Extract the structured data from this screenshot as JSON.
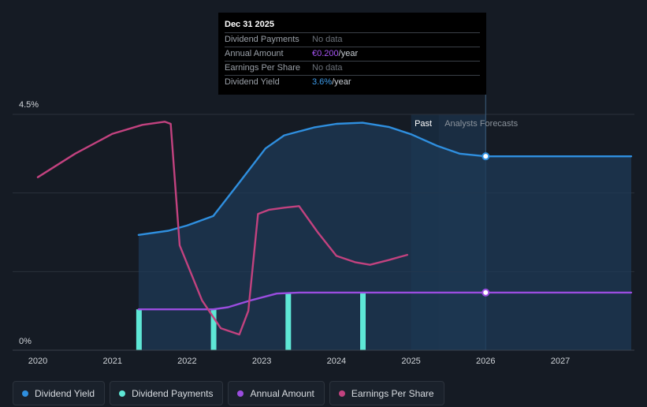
{
  "tooltip": {
    "date": "Dec 31 2025",
    "rows": [
      {
        "label": "Dividend Payments",
        "value": "No data",
        "unit": ""
      },
      {
        "label": "Annual Amount",
        "value": "€0.200",
        "unit": "/year"
      },
      {
        "label": "Earnings Per Share",
        "value": "No data",
        "unit": ""
      },
      {
        "label": "Dividend Yield",
        "value": "3.6%",
        "unit": "/year"
      }
    ]
  },
  "legend": [
    {
      "label": "Dividend Yield",
      "color": "#2f8fdf"
    },
    {
      "label": "Dividend Payments",
      "color": "#5ee7d6"
    },
    {
      "label": "Annual Amount",
      "color": "#9b4de0"
    },
    {
      "label": "Earnings Per Share",
      "color": "#c2427f"
    }
  ],
  "chart_data": {
    "type": "line",
    "x_ticks": [
      "2020",
      "2021",
      "2022",
      "2023",
      "2024",
      "2025",
      "2026",
      "2027"
    ],
    "y_ticks": [
      "0%",
      "4.5%"
    ],
    "ylim": [
      0,
      4.5
    ],
    "xlim": [
      2019.7,
      2027.95
    ],
    "past_label": "Past",
    "forecast_label": "Analysts Forecasts",
    "forecast_start": 2025.0,
    "series": [
      {
        "name": "Dividend Yield",
        "color": "#2f8fdf",
        "area": true,
        "points": [
          [
            2021.35,
            2.2
          ],
          [
            2021.75,
            2.28
          ],
          [
            2022.0,
            2.38
          ],
          [
            2022.35,
            2.56
          ],
          [
            2022.7,
            3.2
          ],
          [
            2023.05,
            3.85
          ],
          [
            2023.3,
            4.1
          ],
          [
            2023.7,
            4.25
          ],
          [
            2024.0,
            4.32
          ],
          [
            2024.35,
            4.34
          ],
          [
            2024.7,
            4.26
          ],
          [
            2025.0,
            4.12
          ],
          [
            2025.35,
            3.9
          ],
          [
            2025.65,
            3.75
          ],
          [
            2026.0,
            3.7
          ],
          [
            2027.95,
            3.7
          ]
        ]
      },
      {
        "name": "Annual Amount",
        "color": "#9b4de0",
        "points": [
          [
            2021.35,
            0.78
          ],
          [
            2022.35,
            0.78
          ],
          [
            2022.55,
            0.82
          ],
          [
            2022.85,
            0.95
          ],
          [
            2023.2,
            1.08
          ],
          [
            2023.5,
            1.1
          ],
          [
            2026.0,
            1.1
          ],
          [
            2027.95,
            1.1
          ]
        ]
      },
      {
        "name": "Earnings Per Share",
        "color": "#c2427f",
        "points": [
          [
            2020.0,
            3.3
          ],
          [
            2020.5,
            3.75
          ],
          [
            2021.0,
            4.13
          ],
          [
            2021.4,
            4.3
          ],
          [
            2021.7,
            4.36
          ],
          [
            2021.78,
            4.32
          ],
          [
            2021.9,
            2.0
          ],
          [
            2022.2,
            0.95
          ],
          [
            2022.45,
            0.42
          ],
          [
            2022.7,
            0.3
          ],
          [
            2022.82,
            0.75
          ],
          [
            2022.95,
            2.6
          ],
          [
            2023.1,
            2.68
          ],
          [
            2023.3,
            2.72
          ],
          [
            2023.5,
            2.75
          ],
          [
            2023.75,
            2.25
          ],
          [
            2024.0,
            1.8
          ],
          [
            2024.25,
            1.68
          ],
          [
            2024.45,
            1.63
          ],
          [
            2024.7,
            1.72
          ],
          [
            2024.95,
            1.82
          ]
        ]
      }
    ],
    "bars": {
      "name": "Dividend Payments",
      "color": "#5ee7d6",
      "base": 0,
      "x": [
        2021.35,
        2022.35,
        2023.35,
        2024.35
      ],
      "values": [
        0.78,
        0.78,
        1.1,
        1.1
      ]
    },
    "markers": [
      {
        "series": "Dividend Yield",
        "x": 2026.0,
        "y": 3.7
      },
      {
        "series": "Annual Amount",
        "x": 2026.0,
        "y": 1.1
      }
    ]
  }
}
